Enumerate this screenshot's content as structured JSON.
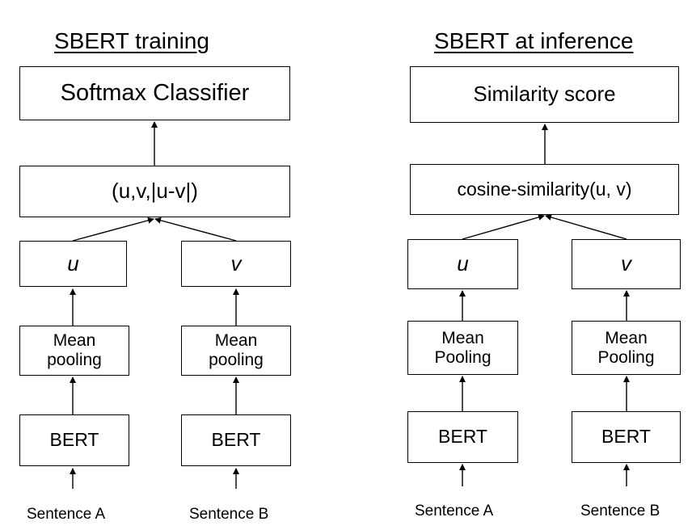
{
  "training": {
    "title": "SBERT training",
    "classifier": "Softmax Classifier",
    "concat": "(u,v,|u-v|)",
    "u": "u",
    "v": "v",
    "pool_a": [
      "Mean",
      "pooling"
    ],
    "pool_b": [
      "Mean",
      "pooling"
    ],
    "bert_a": "BERT",
    "bert_b": "BERT",
    "sentence_a": "Sentence A",
    "sentence_b": "Sentence B"
  },
  "inference": {
    "title": "SBERT at inference",
    "score": "Similarity score",
    "cosine": "cosine-similarity(u, v)",
    "u": "u",
    "v": "v",
    "pool_a": [
      "Mean",
      "Pooling"
    ],
    "pool_b": [
      "Mean",
      "Pooling"
    ],
    "bert_a": "BERT",
    "bert_b": "BERT",
    "sentence_a": "Sentence A",
    "sentence_b": "Sentence B"
  }
}
